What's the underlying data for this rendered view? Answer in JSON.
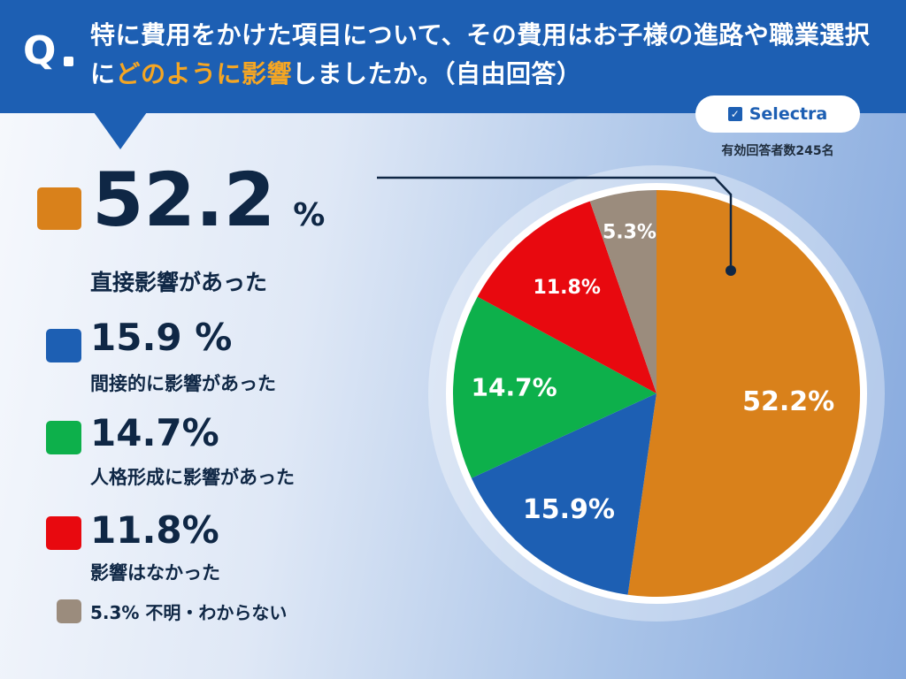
{
  "header": {
    "q_mark": "Q",
    "title_part1": "特に費用をかけた項目について、その費用はお子様の進路や職業選択に",
    "title_highlight": "どのように影響",
    "title_part2": "しましたか。（自由回答）"
  },
  "brand": {
    "name": "Selectra",
    "icon": "check-icon"
  },
  "respondents": "有効回答者数245名",
  "legend": [
    {
      "pct": "52.2",
      "unit": "%",
      "label": "直接影響があった"
    },
    {
      "pct": "15.9 %",
      "label": "間接的に影響があった"
    },
    {
      "pct": "14.7%",
      "label": "人格形成に影響があった"
    },
    {
      "pct": "11.8%",
      "label": "影響はなかった"
    },
    {
      "text": "5.3% 不明・わからない"
    }
  ],
  "chart_data": {
    "type": "pie",
    "title": "",
    "categories": [
      "直接影響があった",
      "間接的に影響があった",
      "人格形成に影響があった",
      "影響はなかった",
      "不明・わからない"
    ],
    "values": [
      52.2,
      15.9,
      14.7,
      11.8,
      5.3
    ],
    "slice_labels": [
      "52.2%",
      "15.9%",
      "14.7%",
      "11.8%",
      "5.3%"
    ],
    "colors": [
      "#d9811b",
      "#1d5fb3",
      "#0db04b",
      "#e8090f",
      "#9b8c7d"
    ],
    "start_angle": "12 o'clock",
    "direction": "clockwise"
  }
}
